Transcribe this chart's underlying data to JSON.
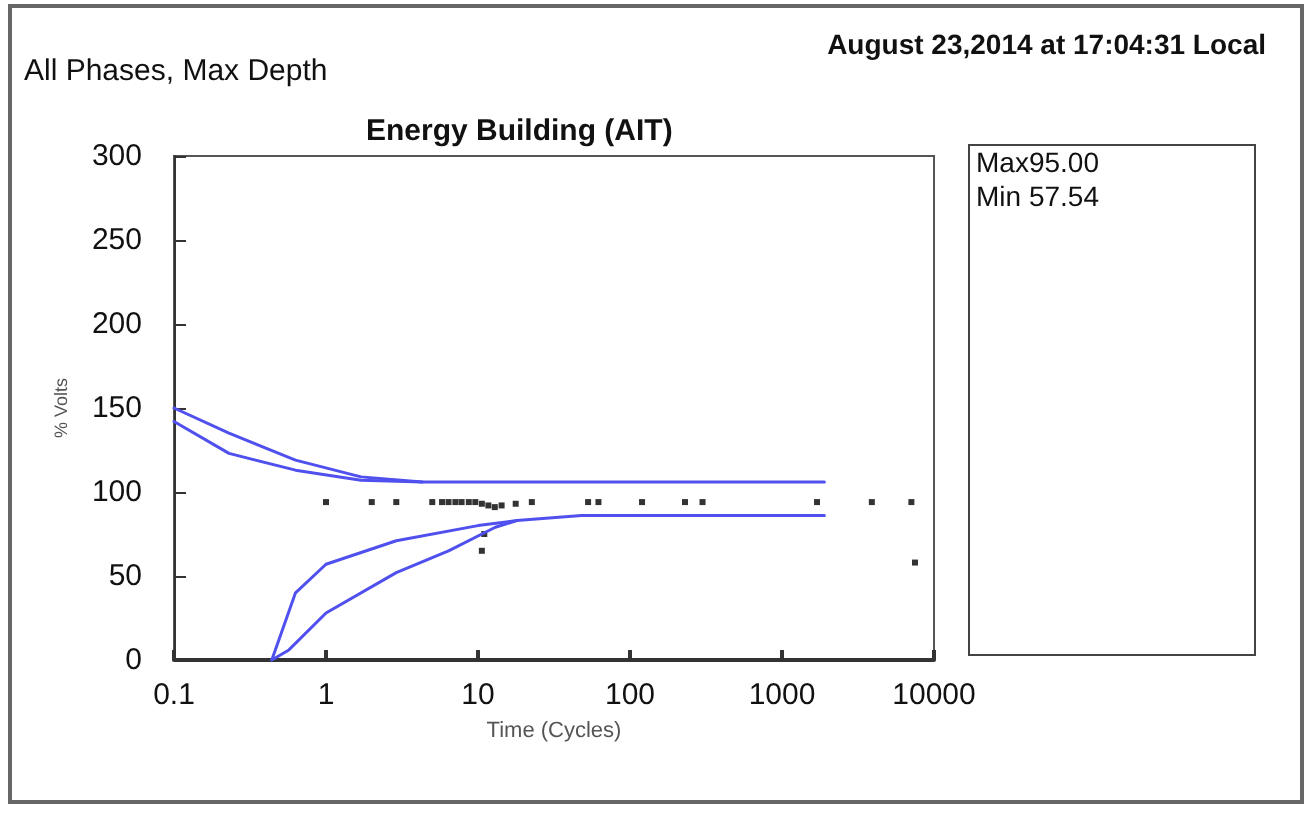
{
  "chart_data": {
    "type": "line",
    "title": "Energy Building (AIT)",
    "subtitle": "All Phases, Max Depth",
    "xlabel": "Time (Cycles)",
    "ylabel": "% Volts",
    "annotations": [
      "August 23,2014 at 17:04:31 Local",
      "Max95.00",
      "Min 57.54"
    ],
    "log": "x",
    "xlim": [
      0.1,
      10000
    ],
    "xticks": [
      0.1,
      1,
      10,
      100,
      1000,
      10000
    ],
    "ylim": [
      0,
      300
    ],
    "yticks": [
      0,
      50,
      100,
      150,
      200,
      250,
      300
    ],
    "grid": false,
    "series": [
      {
        "color": "#5050ee",
        "marker": "none",
        "x": [
          0.1,
          0.23,
          0.63,
          1.7,
          4.3,
          1900
        ],
        "values": [
          150,
          135,
          119,
          109,
          106,
          106
        ]
      },
      {
        "color": "#5050ee",
        "marker": "none",
        "x": [
          0.1,
          0.23,
          0.63,
          1.7,
          4.3
        ],
        "values": [
          142,
          123,
          113,
          107,
          106
        ]
      },
      {
        "color": "#5050ee",
        "marker": "none",
        "x": [
          0.44,
          0.63,
          1.0,
          2.9,
          10,
          18,
          48,
          1900
        ],
        "values": [
          0,
          40,
          57,
          71,
          80,
          83,
          86,
          86
        ]
      },
      {
        "color": "#5050ee",
        "marker": "none",
        "x": [
          0.44,
          0.57,
          1.0,
          2.9,
          6.4,
          13,
          18
        ],
        "values": [
          0,
          6,
          28,
          52,
          65,
          79,
          83
        ]
      },
      {
        "type": "scatter",
        "color": "#000000",
        "marker": "square",
        "x": [
          1.0,
          2.0,
          2.9,
          5.0,
          5.8,
          6.4,
          7.1,
          7.8,
          8.7,
          9.6,
          10.6,
          11.7,
          12.9,
          14.3,
          17.7,
          22.6,
          53,
          62,
          120,
          230,
          300,
          1700,
          3900,
          7100,
          10.6,
          11,
          7500
        ],
        "values": [
          94,
          94,
          94,
          94,
          94,
          94,
          94,
          94,
          94,
          94,
          93,
          92,
          91,
          92,
          93,
          94,
          94,
          94,
          94,
          94,
          94,
          94,
          94,
          94,
          65,
          75,
          58
        ]
      }
    ]
  }
}
